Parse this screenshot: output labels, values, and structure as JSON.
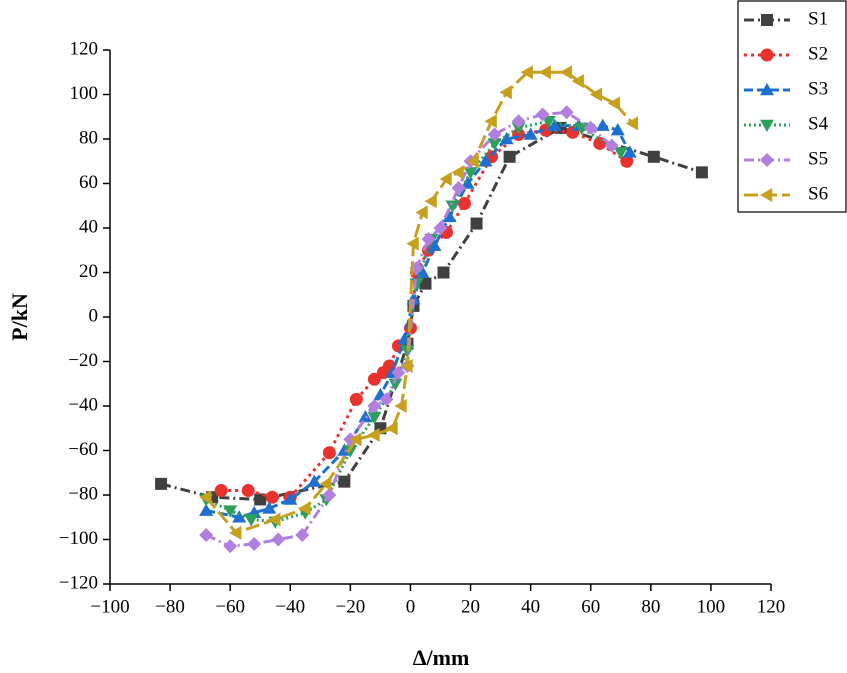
{
  "chart_data": {
    "type": "line",
    "xlabel": "Δ/mm",
    "ylabel": "P/kN",
    "xlim": [
      -100,
      120
    ],
    "ylim": [
      -120,
      120
    ],
    "xticks": [
      {
        "value": -100,
        "label": "−100"
      },
      {
        "value": -80,
        "label": "−80"
      },
      {
        "value": -60,
        "label": "−60"
      },
      {
        "value": -40,
        "label": "−40"
      },
      {
        "value": -20,
        "label": "−20"
      },
      0,
      20,
      40,
      60,
      80,
      100,
      120
    ],
    "yticks": [
      {
        "value": -120,
        "label": "−120"
      },
      {
        "value": -100,
        "label": "−100"
      },
      {
        "value": -80,
        "label": "−80"
      },
      {
        "value": -60,
        "label": "−60"
      },
      {
        "value": -40,
        "label": "−40"
      },
      {
        "value": -20,
        "label": "−20"
      },
      0,
      20,
      40,
      60,
      80,
      100,
      120
    ],
    "legend": "upper right",
    "series": [
      {
        "name": "S1",
        "color": "#404040",
        "marker": "square",
        "dash": "10 4 2 4",
        "x": [
          -83,
          -66,
          -50,
          -22,
          -10,
          -1,
          1,
          5,
          11,
          22,
          33,
          50,
          81,
          97
        ],
        "values": [
          -75,
          -81,
          -82,
          -74,
          -50,
          -12,
          5,
          15,
          20,
          42,
          72,
          85,
          72,
          65
        ]
      },
      {
        "name": "S2",
        "color": "#e8322e",
        "marker": "circle",
        "dash": "3 4",
        "x": [
          -63,
          -54,
          -46,
          -40,
          -27,
          -18,
          -12,
          -9,
          -7,
          -4,
          0,
          2,
          6,
          12,
          18,
          27,
          36,
          45,
          54,
          63,
          72
        ],
        "values": [
          -78,
          -78,
          -81,
          -81,
          -61,
          -37,
          -28,
          -25,
          -22,
          -13,
          -5,
          20,
          30,
          38,
          51,
          72,
          82,
          84,
          83,
          78,
          70
        ]
      },
      {
        "name": "S3",
        "color": "#1f6fd0",
        "marker": "triangle-up",
        "dash": "9 4",
        "x": [
          -68,
          -57,
          -52,
          -47,
          -40,
          -32,
          -22,
          -15,
          -10,
          -6,
          -2,
          1,
          4,
          8,
          13,
          19,
          25,
          32,
          40,
          48,
          56,
          64,
          69,
          73
        ],
        "values": [
          -87,
          -90,
          -88,
          -86,
          -82,
          -74,
          -60,
          -45,
          -35,
          -25,
          -10,
          8,
          20,
          32,
          45,
          60,
          70,
          80,
          82,
          86,
          86,
          86,
          84,
          74
        ]
      },
      {
        "name": "S4",
        "color": "#2ca05a",
        "marker": "triangle-down",
        "dash": "2 3",
        "x": [
          -68,
          -60,
          -53,
          -45,
          -35,
          -28,
          -20,
          -12,
          -5,
          -1,
          2,
          7,
          14,
          20,
          28,
          36,
          46,
          57,
          70
        ],
        "values": [
          -82,
          -87,
          -91,
          -92,
          -88,
          -82,
          -60,
          -45,
          -30,
          -15,
          15,
          35,
          50,
          65,
          78,
          85,
          88,
          85,
          74
        ]
      },
      {
        "name": "S5",
        "color": "#b27fe0",
        "marker": "diamond",
        "dash": "10 4 2 4",
        "x": [
          -68,
          -60,
          -52,
          -44,
          -36,
          -27,
          -20,
          -12,
          -8,
          -4,
          -1,
          2,
          6,
          10,
          16,
          20,
          28,
          36,
          44,
          52,
          60,
          67
        ],
        "values": [
          -98,
          -103,
          -102,
          -100,
          -98,
          -80,
          -55,
          -40,
          -37,
          -25,
          -22,
          22,
          35,
          40,
          58,
          70,
          82,
          88,
          91,
          92,
          85,
          77
        ]
      },
      {
        "name": "S6",
        "color": "#c8a020",
        "marker": "triangle-left",
        "dash": "14 5",
        "x": [
          -68,
          -58,
          -45,
          -35,
          -28,
          -18,
          -12,
          -6,
          -3,
          -1,
          1,
          4,
          7,
          12,
          16,
          21,
          27,
          32,
          39,
          45,
          52,
          56,
          62,
          68,
          74
        ],
        "values": [
          -81,
          -97,
          -91,
          -86,
          -75,
          -55,
          -53,
          -50,
          -40,
          -22,
          33,
          47,
          52,
          62,
          65,
          70,
          88,
          101,
          110,
          110,
          110,
          106,
          100,
          96,
          87
        ]
      }
    ]
  }
}
